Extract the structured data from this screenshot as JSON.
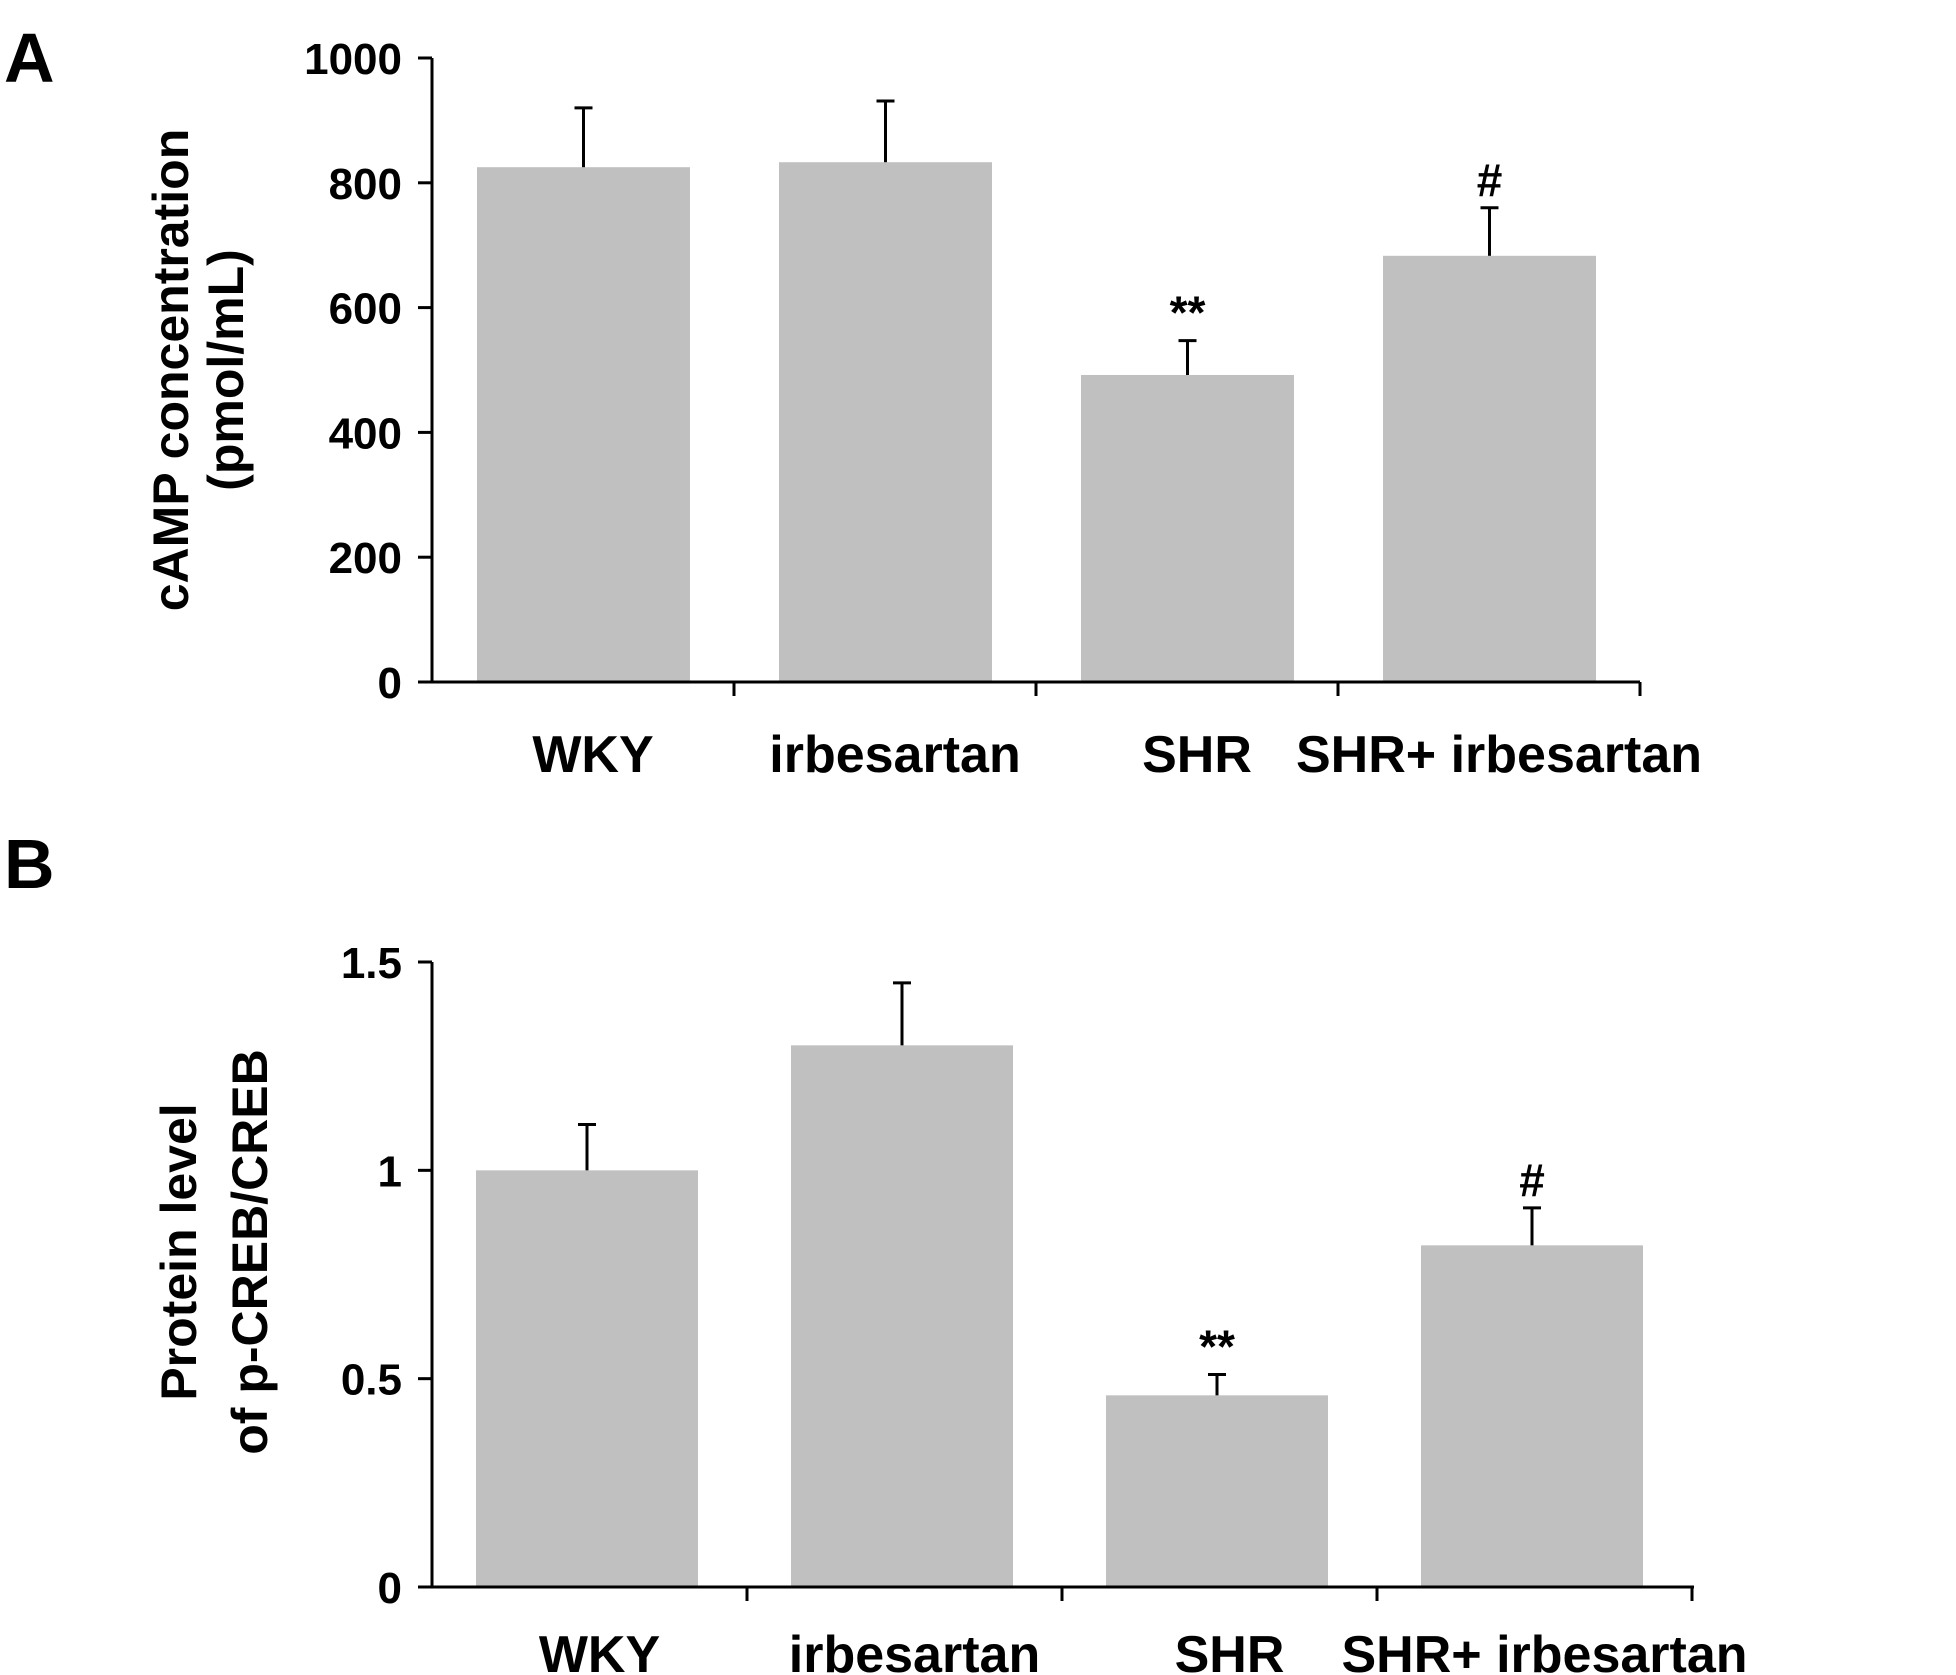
{
  "chart_data": [
    {
      "panel_label": "A",
      "type": "bar",
      "categories": [
        "WKY",
        "irbesartan",
        "SHR",
        "SHR+ irbesartan"
      ],
      "values": [
        825,
        833,
        492,
        683
      ],
      "errors": [
        95,
        98,
        55,
        77
      ],
      "annotations": [
        "",
        "",
        "**",
        "#"
      ],
      "ylabel": [
        "cAMP concentration",
        "(pmol/mL)"
      ],
      "ylim": [
        0,
        1000
      ],
      "yticks": [
        {
          "value": 0,
          "label": "0"
        },
        {
          "value": 200,
          "label": "200"
        },
        {
          "value": 400,
          "label": "400"
        },
        {
          "value": 600,
          "label": "600"
        },
        {
          "value": 800,
          "label": "800"
        },
        {
          "value": 1000,
          "label": "1000"
        }
      ],
      "bar_color": "#c0c0c0",
      "grid": false
    },
    {
      "panel_label": "B",
      "type": "bar",
      "categories": [
        "WKY",
        "irbesartan",
        "SHR",
        "SHR+ irbesartan"
      ],
      "values": [
        1.0,
        1.3,
        0.46,
        0.82
      ],
      "errors": [
        0.11,
        0.15,
        0.05,
        0.09
      ],
      "annotations": [
        "",
        "",
        "**",
        "#"
      ],
      "ylabel": [
        "Protein level",
        "of p-CREB/CREB"
      ],
      "ylim": [
        0,
        1.5
      ],
      "yticks": [
        {
          "value": 0,
          "label": "0"
        },
        {
          "value": 0.5,
          "label": "0.5"
        },
        {
          "value": 1.0,
          "label": "1"
        },
        {
          "value": 1.5,
          "label": "1.5"
        }
      ],
      "bar_color": "#c0c0c0",
      "grid": false
    }
  ]
}
